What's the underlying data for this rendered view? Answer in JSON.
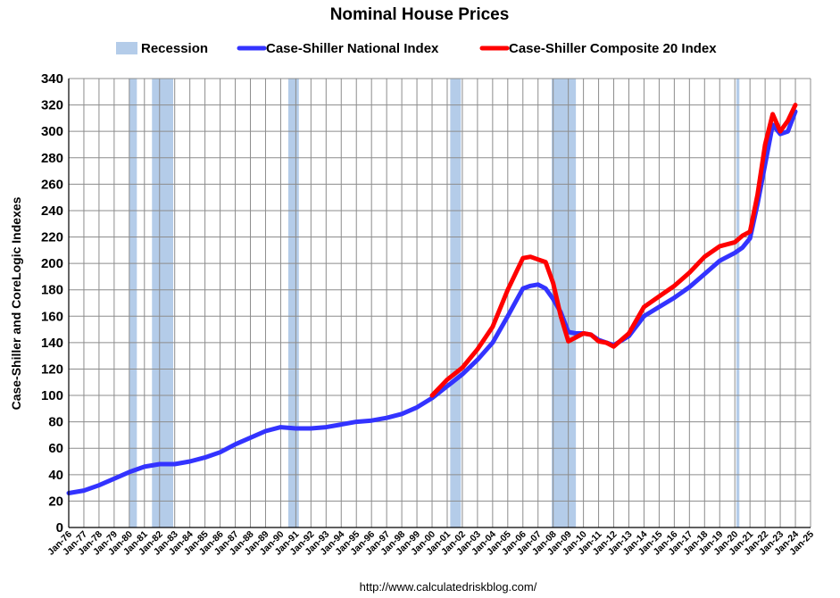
{
  "chart_data": {
    "type": "line",
    "title": "Nominal House Prices",
    "ylabel": "Case-Shiller and CoreLogic Indexes",
    "xlabel": "",
    "source_text": "http://www.calculatedriskblog.com/",
    "ylim": [
      0,
      340
    ],
    "yticks": [
      0,
      20,
      40,
      60,
      80,
      100,
      120,
      140,
      160,
      180,
      200,
      220,
      240,
      260,
      280,
      300,
      320,
      340
    ],
    "xlim": [
      1976,
      2025
    ],
    "xtick_labels": [
      "Jan-76",
      "Jan-77",
      "Jan-78",
      "Jan-79",
      "Jan-80",
      "Jan-81",
      "Jan-82",
      "Jan-83",
      "Jan-84",
      "Jan-85",
      "Jan-86",
      "Jan-87",
      "Jan-88",
      "Jan-89",
      "Jan-90",
      "Jan-91",
      "Jan-92",
      "Jan-93",
      "Jan-94",
      "Jan-95",
      "Jan-96",
      "Jan-97",
      "Jan-98",
      "Jan-99",
      "Jan-00",
      "Jan-01",
      "Jan-02",
      "Jan-03",
      "Jan-04",
      "Jan-05",
      "Jan-06",
      "Jan-07",
      "Jan-08",
      "Jan-09",
      "Jan-10",
      "Jan-11",
      "Jan-12",
      "Jan-13",
      "Jan-14",
      "Jan-15",
      "Jan-16",
      "Jan-17",
      "Jan-18",
      "Jan-19",
      "Jan-20",
      "Jan-21",
      "Jan-22",
      "Jan-23",
      "Jan-24",
      "Jan-25"
    ],
    "grid": true,
    "legend_position": "top",
    "legend": [
      {
        "name": "Recession",
        "kind": "band",
        "color": "#b4cce9"
      },
      {
        "name": "Case-Shiller National Index",
        "kind": "line",
        "color": "#3333ff"
      },
      {
        "name": "Case-Shiller Composite 20 Index",
        "kind": "line",
        "color": "#ff0000"
      }
    ],
    "recessions": [
      {
        "start": 1980.0,
        "end": 1980.5
      },
      {
        "start": 1981.5,
        "end": 1982.9
      },
      {
        "start": 1990.5,
        "end": 1991.2
      },
      {
        "start": 2001.2,
        "end": 2001.9
      },
      {
        "start": 2007.9,
        "end": 2009.5
      },
      {
        "start": 2020.1,
        "end": 2020.3
      }
    ],
    "series": [
      {
        "name": "Case-Shiller National Index",
        "color": "#3333ff",
        "x": [
          1976,
          1977,
          1978,
          1979,
          1980,
          1981,
          1982,
          1983,
          1984,
          1985,
          1986,
          1987,
          1988,
          1989,
          1990,
          1991,
          1992,
          1993,
          1994,
          1995,
          1996,
          1997,
          1998,
          1999,
          2000,
          2001,
          2002,
          2003,
          2004,
          2005,
          2006,
          2006.5,
          2007,
          2007.5,
          2008,
          2008.5,
          2009,
          2009.5,
          2010,
          2010.5,
          2011,
          2011.5,
          2012,
          2013,
          2014,
          2015,
          2016,
          2017,
          2018,
          2019,
          2020,
          2020.5,
          2021,
          2021.5,
          2022,
          2022.5,
          2023,
          2023.5,
          2024
        ],
        "values": [
          26,
          28,
          32,
          37,
          42,
          46,
          48,
          48,
          50,
          53,
          57,
          63,
          68,
          73,
          76,
          75,
          75,
          76,
          78,
          80,
          81,
          83,
          86,
          91,
          98,
          107,
          116,
          127,
          140,
          160,
          181,
          183,
          184,
          181,
          173,
          163,
          148,
          147,
          147,
          146,
          142,
          140,
          138,
          145,
          160,
          167,
          174,
          182,
          192,
          202,
          208,
          212,
          219,
          245,
          275,
          305,
          298,
          300,
          315
        ]
      },
      {
        "name": "Case-Shiller Composite 20 Index",
        "color": "#ff0000",
        "x": [
          2000,
          2001,
          2002,
          2003,
          2004,
          2005,
          2006,
          2006.5,
          2007,
          2007.5,
          2008,
          2008.5,
          2009,
          2009.5,
          2010,
          2010.5,
          2011,
          2011.5,
          2012,
          2013,
          2014,
          2015,
          2016,
          2017,
          2018,
          2019,
          2020,
          2020.5,
          2021,
          2021.5,
          2022,
          2022.5,
          2023,
          2023.5,
          2024
        ],
        "values": [
          100,
          112,
          121,
          135,
          152,
          180,
          204,
          205,
          203,
          201,
          185,
          160,
          141,
          144,
          147,
          146,
          141,
          140,
          137,
          147,
          167,
          175,
          183,
          193,
          205,
          213,
          216,
          221,
          224,
          252,
          290,
          313,
          300,
          308,
          320
        ]
      }
    ]
  }
}
